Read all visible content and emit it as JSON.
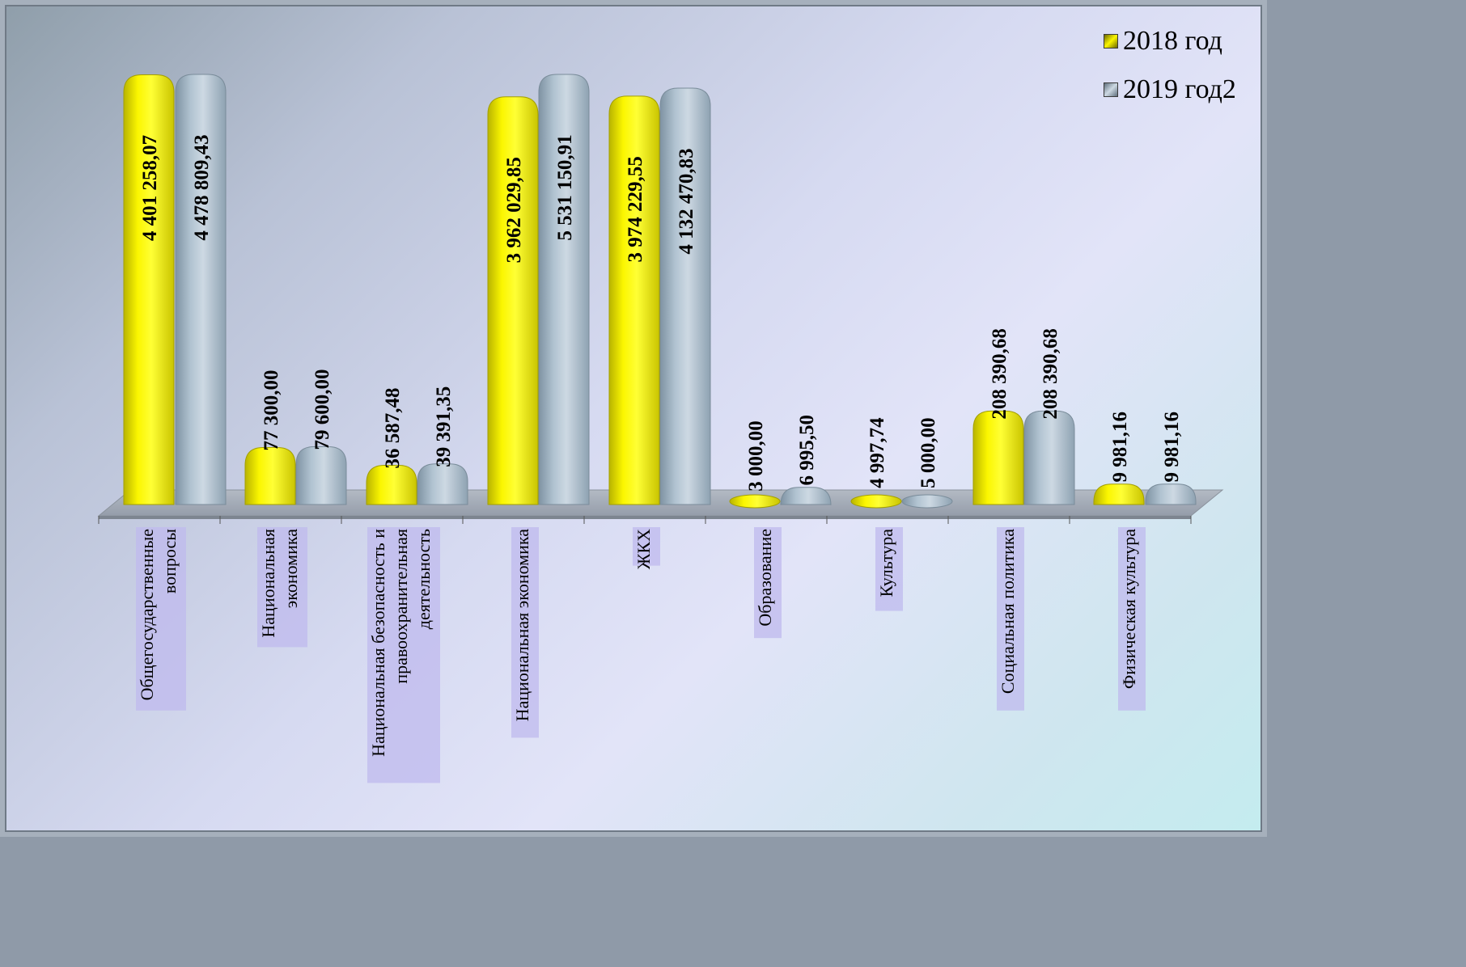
{
  "chart_data": {
    "type": "bar",
    "categories": [
      "Общегосударственные вопросы",
      "Национальная экономика",
      "Национальная безопасность и правоохранительная деятельность",
      "Национальная экономика",
      "ЖКХ",
      "Образование",
      "Культура",
      "Социальная политика",
      "Физическая культура"
    ],
    "category_lines": [
      [
        "Общегосударственные",
        "вопросы"
      ],
      [
        "Национальная",
        "экономика"
      ],
      [
        "Национальная безопасность и",
        "правоохранительная",
        "деятельность"
      ],
      [
        "Национальная экономика"
      ],
      [
        "ЖКХ"
      ],
      [
        "Образование"
      ],
      [
        "Культура"
      ],
      [
        "Социальная политика"
      ],
      [
        "Физическая культура"
      ]
    ],
    "series": [
      {
        "name": "2018 год",
        "color": "#f2ee00",
        "values": [
          4401258.07,
          77300.0,
          36587.48,
          3962029.85,
          3974229.55,
          3000.0,
          4997.74,
          208390.68,
          9981.16
        ],
        "labels": [
          "4 401 258,07",
          "77 300,00",
          "36 587,48",
          "3 962 029,85",
          "3 974 229,55",
          "3 000,00",
          "4 997,74",
          "208 390,68",
          "9 981,16"
        ]
      },
      {
        "name": "2019 год2",
        "color": "#a9bccb",
        "values": [
          4478809.43,
          79600.0,
          39391.35,
          5531150.91,
          4132470.83,
          6995.5,
          5000.0,
          208390.68,
          9981.16
        ],
        "labels": [
          "4 478 809,43",
          "79 600,00",
          "39 391,35",
          "5 531 150,91",
          "4 132 470,83",
          "6 995,50",
          "5 000,00",
          "208 390,68",
          "9 981,16"
        ]
      }
    ],
    "legend_position": "top-right",
    "grid": false
  }
}
